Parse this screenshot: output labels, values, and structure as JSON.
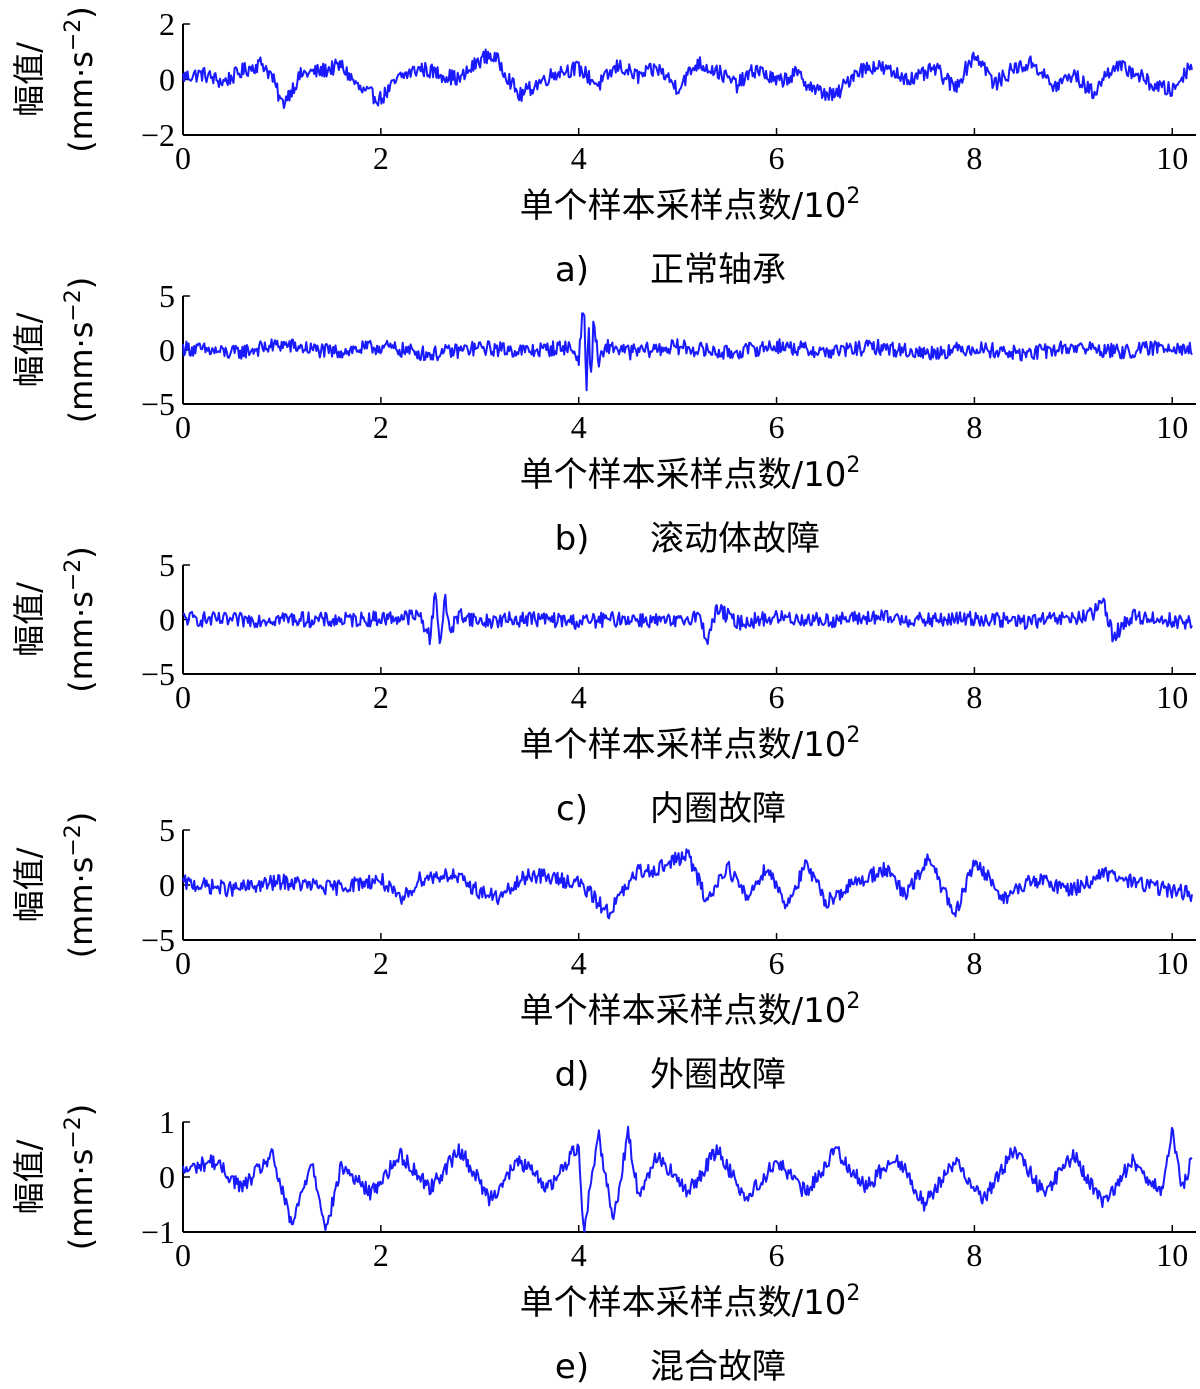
{
  "chart_data": [
    {
      "type": "line",
      "xlabel": "单个样本采样点数/10",
      "xlabel_exp": "2",
      "ylabel_top": "幅值/",
      "ylabel_bottom": "(mm·s",
      "ylabel_exp": "−2",
      "ylabel_close": ")",
      "caption_letter": "a)",
      "caption_text": "正常轴承",
      "xlim": [
        0,
        10.24
      ],
      "ylim": [
        -2,
        2
      ],
      "xticks": [
        0,
        2,
        4,
        6,
        8,
        10
      ],
      "yticks": [
        2,
        0,
        -2
      ],
      "ytick_labels": [
        "2",
        "0",
        "−2"
      ],
      "line_color": "#1a1aff",
      "series": [
        {
          "x": [
            0,
            0.2,
            0.4,
            0.6,
            0.8,
            0.9,
            1.0,
            1.2,
            1.4,
            1.6,
            1.8,
            2.0,
            2.2,
            2.4,
            2.6,
            2.8,
            3.0,
            3.1,
            3.2,
            3.4,
            3.6,
            3.8,
            4.0,
            4.2,
            4.4,
            4.6,
            4.8,
            5.0,
            5.2,
            5.4,
            5.6,
            5.8,
            6.0,
            6.2,
            6.4,
            6.6,
            6.8,
            7.0,
            7.2,
            7.4,
            7.6,
            7.8,
            8.0,
            8.1,
            8.2,
            8.4,
            8.6,
            8.8,
            9.0,
            9.2,
            9.4,
            9.6,
            9.8,
            10.0,
            10.2
          ],
          "y": [
            0.1,
            0.2,
            -0.1,
            0.3,
            0.6,
            0.1,
            -0.9,
            0.2,
            0.3,
            0.5,
            -0.4,
            -0.7,
            0.1,
            0.4,
            0.2,
            0.0,
            0.7,
            0.9,
            0.6,
            -0.6,
            -0.1,
            0.3,
            0.4,
            -0.2,
            0.5,
            0.1,
            0.4,
            -0.3,
            0.6,
            0.3,
            -0.2,
            0.4,
            -0.1,
            0.2,
            -0.4,
            -0.6,
            0.3,
            0.5,
            0.2,
            0.0,
            0.4,
            -0.3,
            0.9,
            0.5,
            -0.2,
            0.4,
            0.6,
            -0.3,
            0.2,
            -0.5,
            0.5,
            0.3,
            -0.2,
            -0.4,
            0.6
          ]
        }
      ]
    },
    {
      "type": "line",
      "xlabel": "单个样本采样点数/10",
      "xlabel_exp": "2",
      "ylabel_top": "幅值/",
      "ylabel_bottom": "(mm·s",
      "ylabel_exp": "−2",
      "ylabel_close": ")",
      "caption_letter": "b)",
      "caption_text": "滚动体故障",
      "xlim": [
        0,
        10.24
      ],
      "ylim": [
        -5,
        5
      ],
      "xticks": [
        0,
        2,
        4,
        6,
        8,
        10
      ],
      "yticks": [
        5,
        0,
        -5
      ],
      "ytick_labels": [
        "5",
        "0",
        "−5"
      ],
      "line_color": "#1a1aff",
      "series": [
        {
          "x": [
            0,
            0.5,
            1.0,
            1.5,
            2.0,
            2.5,
            3.0,
            3.5,
            3.9,
            4.0,
            4.05,
            4.08,
            4.1,
            4.12,
            4.15,
            4.2,
            4.3,
            4.5,
            5.0,
            5.5,
            6.0,
            6.5,
            7.0,
            7.5,
            8.0,
            8.5,
            9.0,
            9.5,
            10.0,
            10.2
          ],
          "y": [
            0.2,
            -0.3,
            0.5,
            -0.2,
            0.3,
            -0.4,
            0.2,
            -0.1,
            0.3,
            -0.8,
            4.5,
            -4.0,
            3.5,
            -3.8,
            2.8,
            -1.2,
            0.4,
            -0.2,
            0.3,
            -0.3,
            0.4,
            -0.2,
            0.3,
            -0.3,
            0.2,
            -0.4,
            0.3,
            -0.2,
            0.4,
            0.0
          ]
        }
      ]
    },
    {
      "type": "line",
      "xlabel": "单个样本采样点数/10",
      "xlabel_exp": "2",
      "ylabel_top": "幅值/",
      "ylabel_bottom": "(mm·s",
      "ylabel_exp": "−2",
      "ylabel_close": ")",
      "caption_letter": "c)",
      "caption_text": "内圈故障",
      "xlim": [
        0,
        10.24
      ],
      "ylim": [
        -5,
        5
      ],
      "xticks": [
        0,
        2,
        4,
        6,
        8,
        10
      ],
      "yticks": [
        5,
        0,
        -5
      ],
      "ytick_labels": [
        "5",
        "0",
        "−5"
      ],
      "line_color": "#1a1aff",
      "series": [
        {
          "x": [
            0,
            0.5,
            1.0,
            1.5,
            2.0,
            2.4,
            2.5,
            2.55,
            2.6,
            2.65,
            2.7,
            2.8,
            3.0,
            3.5,
            4.0,
            4.5,
            5.0,
            5.2,
            5.3,
            5.4,
            5.6,
            6.0,
            6.5,
            7.0,
            7.5,
            8.0,
            8.5,
            9.0,
            9.2,
            9.3,
            9.4,
            9.6,
            10.0,
            10.2
          ],
          "y": [
            0.1,
            -0.1,
            0.1,
            -0.1,
            0.1,
            0.3,
            -1.8,
            2.8,
            -2.2,
            1.8,
            -1.0,
            0.5,
            -0.2,
            0.1,
            -0.2,
            0.1,
            -0.3,
            0.5,
            -1.8,
            1.0,
            -0.3,
            0.2,
            -0.1,
            0.2,
            -0.1,
            0.1,
            -0.2,
            0.1,
            0.4,
            1.8,
            -1.5,
            0.3,
            -0.1,
            -0.3
          ]
        }
      ]
    },
    {
      "type": "line",
      "xlabel": "单个样本采样点数/10",
      "xlabel_exp": "2",
      "ylabel_top": "幅值/",
      "ylabel_bottom": "(mm·s",
      "ylabel_exp": "−2",
      "ylabel_close": ")",
      "caption_letter": "d)",
      "caption_text": "外圈故障",
      "xlim": [
        0,
        10.24
      ],
      "ylim": [
        -5,
        5
      ],
      "xticks": [
        0,
        2,
        4,
        6,
        8,
        10
      ],
      "yticks": [
        5,
        0,
        -5
      ],
      "ytick_labels": [
        "5",
        "0",
        "−5"
      ],
      "line_color": "#1a1aff",
      "series": [
        {
          "x": [
            0,
            0.5,
            1.0,
            1.5,
            2.0,
            2.2,
            2.4,
            2.7,
            3.0,
            3.2,
            3.5,
            3.8,
            4.0,
            4.3,
            4.6,
            4.8,
            5.1,
            5.3,
            5.5,
            5.7,
            5.9,
            6.1,
            6.3,
            6.5,
            6.8,
            7.1,
            7.3,
            7.55,
            7.8,
            8.0,
            8.3,
            8.6,
            9.0,
            9.3,
            9.6,
            10.0,
            10.2
          ],
          "y": [
            0.2,
            -0.4,
            0.3,
            -0.3,
            0.5,
            -1.5,
            0.6,
            1.0,
            -0.6,
            -1.2,
            1.0,
            0.5,
            0.2,
            -2.5,
            1.2,
            1.5,
            2.8,
            -1.5,
            1.8,
            -1.2,
            1.7,
            -1.8,
            1.8,
            -1.5,
            0.2,
            1.5,
            -1.0,
            2.5,
            -3.0,
            2.2,
            -1.2,
            0.5,
            -0.4,
            1.0,
            0.3,
            -0.5,
            -0.8
          ]
        }
      ]
    },
    {
      "type": "line",
      "xlabel": "单个样本采样点数/10",
      "xlabel_exp": "2",
      "ylabel_top": "幅值/",
      "ylabel_bottom": "(mm·s",
      "ylabel_exp": "−2",
      "ylabel_close": ")",
      "caption_letter": "e)",
      "caption_text": "混合故障",
      "xlim": [
        0,
        10.24
      ],
      "ylim": [
        -1,
        1
      ],
      "xticks": [
        0,
        2,
        4,
        6,
        8,
        10
      ],
      "yticks": [
        1,
        0,
        -1
      ],
      "ytick_labels": [
        "1",
        "0",
        "−1"
      ],
      "line_color": "#1a1aff",
      "series": [
        {
          "x": [
            0,
            0.3,
            0.6,
            0.9,
            1.1,
            1.3,
            1.45,
            1.6,
            1.9,
            2.2,
            2.5,
            2.8,
            3.1,
            3.4,
            3.7,
            4.0,
            4.05,
            4.2,
            4.35,
            4.5,
            4.6,
            4.8,
            5.1,
            5.4,
            5.7,
            6.0,
            6.3,
            6.6,
            6.9,
            7.2,
            7.5,
            7.8,
            8.1,
            8.4,
            8.7,
            9.0,
            9.3,
            9.6,
            9.9,
            10.0,
            10.1,
            10.2
          ],
          "y": [
            0.1,
            0.3,
            -0.2,
            0.4,
            -0.9,
            0.3,
            -0.95,
            0.2,
            -0.3,
            0.4,
            -0.2,
            0.5,
            -0.4,
            0.3,
            -0.2,
            0.6,
            -1.0,
            0.8,
            -0.8,
            0.8,
            -0.3,
            0.4,
            -0.3,
            0.5,
            -0.4,
            0.3,
            -0.3,
            0.5,
            -0.2,
            0.4,
            -0.5,
            0.3,
            -0.4,
            0.5,
            -0.3,
            0.4,
            -0.5,
            0.3,
            -0.3,
            0.8,
            -0.2,
            0.3
          ]
        }
      ]
    }
  ]
}
